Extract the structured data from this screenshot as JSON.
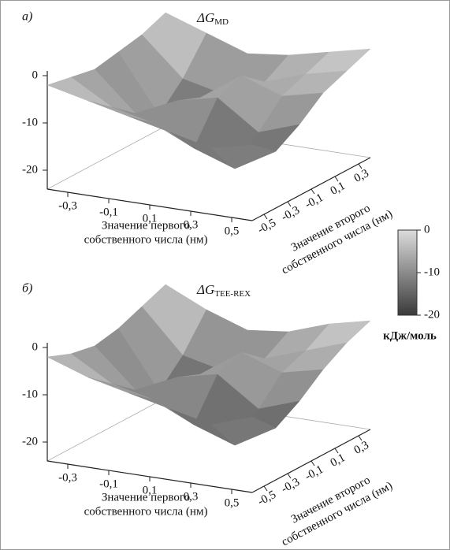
{
  "chart_data": [
    {
      "type": "surface",
      "panel_label": "а)",
      "title": "ΔG",
      "title_sub": "MD",
      "x_label": [
        "Значение первого",
        "собственного числа (нм)"
      ],
      "y_label": [
        "Значение второго",
        "собственного числа (нм)"
      ],
      "x": [
        -0.4,
        -0.2,
        0,
        0.2,
        0.4,
        0.6
      ],
      "y": [
        -0.6,
        -0.4,
        -0.2,
        0,
        0.2,
        0.4
      ],
      "z": [
        [
          -2,
          -4,
          -6,
          -8,
          -10,
          -8
        ],
        [
          -3,
          -8,
          -10,
          -14,
          -17,
          -12
        ],
        [
          -4,
          -12,
          -8,
          -6,
          -12,
          -9
        ],
        [
          -3,
          -15,
          -10,
          -4,
          -7,
          -5
        ],
        [
          -2,
          -10,
          -12,
          -8,
          -5,
          -3
        ],
        [
          0,
          -3,
          -6,
          -5,
          -3,
          -1
        ]
      ],
      "xlim": [
        -0.4,
        0.6
      ],
      "ylim": [
        -0.6,
        0.4
      ],
      "zlim": [
        -24,
        1
      ],
      "xticks": [
        {
          "value": -0.3,
          "label": "-0,3"
        },
        {
          "value": -0.1,
          "label": "-0,1"
        },
        {
          "value": 0.1,
          "label": "0,1"
        },
        {
          "value": 0.3,
          "label": "0,3"
        },
        {
          "value": 0.5,
          "label": "0,5"
        }
      ],
      "yticks": [
        {
          "value": -0.5,
          "label": "-0,5"
        },
        {
          "value": -0.3,
          "label": "-0,3"
        },
        {
          "value": -0.1,
          "label": "-0,1"
        },
        {
          "value": 0.1,
          "label": "0,1"
        },
        {
          "value": 0.3,
          "label": "0,3"
        }
      ],
      "zticks": [
        0,
        -10,
        -20
      ]
    },
    {
      "type": "surface",
      "panel_label": "б)",
      "title": "ΔG",
      "title_sub": "TEE-REX",
      "x_label": [
        "Значение первого",
        "собственного числа (нм)"
      ],
      "y_label": [
        "Значение второго",
        "собственного числа (нм)"
      ],
      "x": [
        -0.4,
        -0.2,
        0,
        0.2,
        0.4,
        0.6
      ],
      "y": [
        -0.6,
        -0.4,
        -0.2,
        0,
        0.2,
        0.4
      ],
      "z": [
        [
          -2,
          -5,
          -7,
          -9,
          -11,
          -8
        ],
        [
          -4,
          -9,
          -11,
          -15,
          -18,
          -13
        ],
        [
          -5,
          -13,
          -9,
          -7,
          -13,
          -10
        ],
        [
          -4,
          -16,
          -11,
          -5,
          -8,
          -6
        ],
        [
          -2,
          -11,
          -13,
          -9,
          -6,
          -3
        ],
        [
          0,
          -4,
          -7,
          -6,
          -3,
          -1
        ]
      ],
      "xlim": [
        -0.4,
        0.6
      ],
      "ylim": [
        -0.6,
        0.4
      ],
      "zlim": [
        -24,
        1
      ],
      "xticks": [
        {
          "value": -0.3,
          "label": "-0,3"
        },
        {
          "value": -0.1,
          "label": "-0,1"
        },
        {
          "value": 0.1,
          "label": "0,1"
        },
        {
          "value": 0.3,
          "label": "0,3"
        },
        {
          "value": 0.5,
          "label": "0,5"
        }
      ],
      "yticks": [
        {
          "value": -0.5,
          "label": "-0,5"
        },
        {
          "value": -0.3,
          "label": "-0,3"
        },
        {
          "value": -0.1,
          "label": "-0,1"
        },
        {
          "value": 0.1,
          "label": "0,1"
        },
        {
          "value": 0.3,
          "label": "0,3"
        }
      ],
      "zticks": [
        0,
        -10,
        -20
      ]
    }
  ],
  "colorbar": {
    "lim": [
      -20,
      0
    ],
    "ticks": [
      0,
      -10,
      -20
    ],
    "label": "кДж/моль"
  }
}
